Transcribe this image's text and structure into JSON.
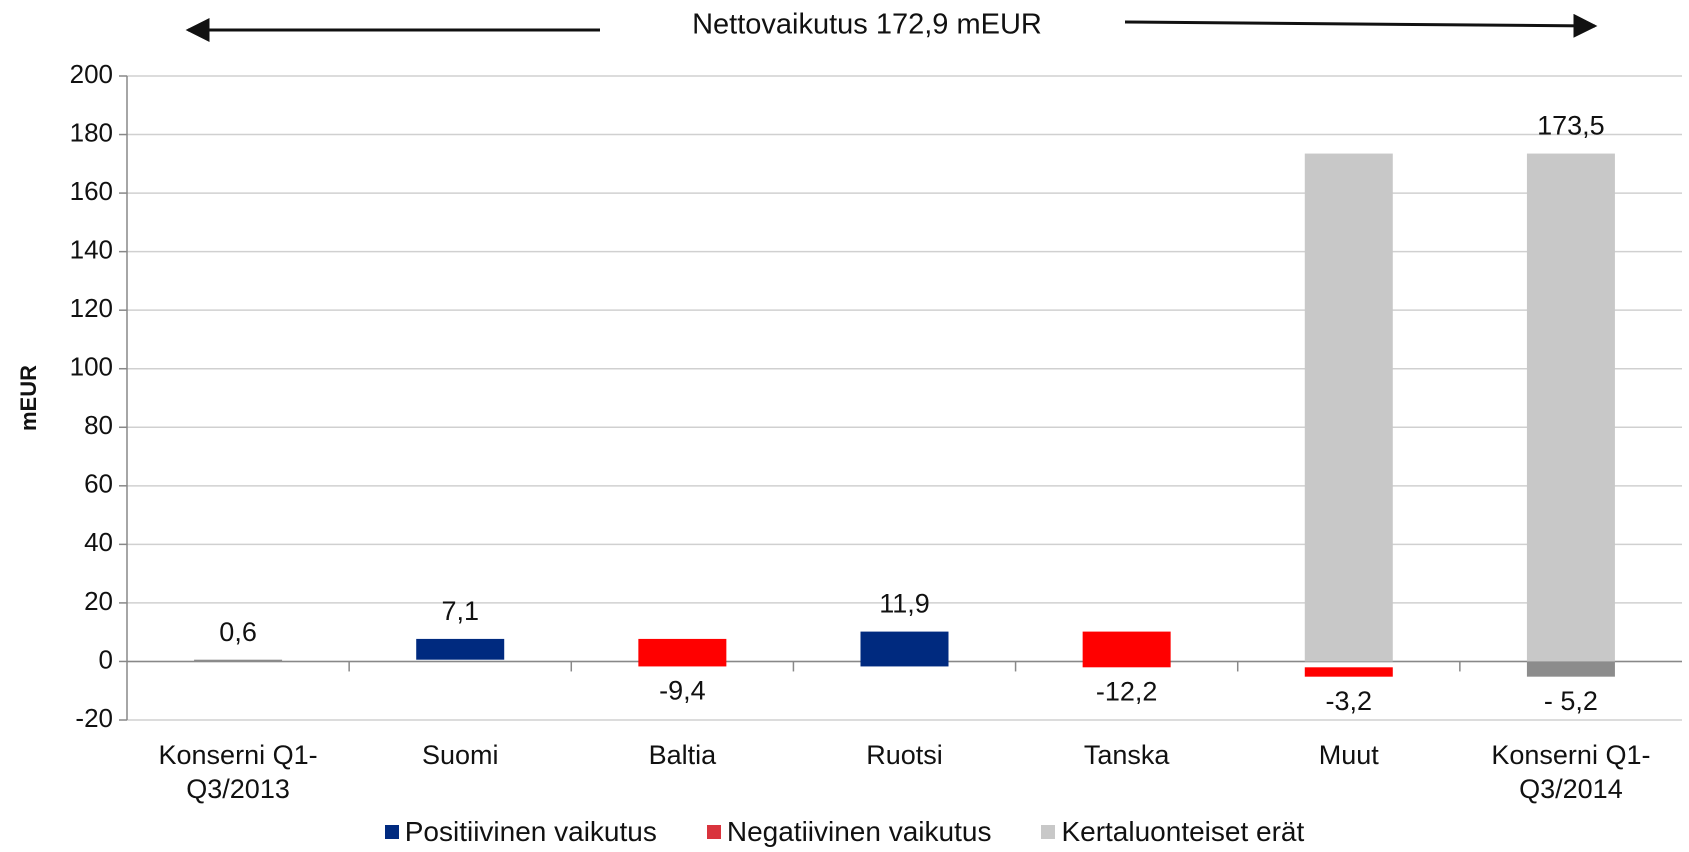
{
  "chart_data": {
    "type": "waterfall",
    "title": "Nettovaikutus 172,9 mEUR",
    "y_label": "mEUR",
    "categories": [
      "Konserni Q1-Q3/2013",
      "Suomi",
      "Baltia",
      "Ruotsi",
      "Tanska",
      "Muut",
      "Konserni Q1-Q3/2014"
    ],
    "totals": {
      "color": "#8c8c8c",
      "values": [
        0.6,
        null,
        null,
        null,
        null,
        null,
        -5.2
      ],
      "value_labels": [
        "0,6",
        null,
        null,
        null,
        null,
        null,
        "- 5,2"
      ]
    },
    "series": [
      {
        "name": "Positiivinen vaikutus",
        "color": "#002a7f",
        "values": [
          null,
          7.1,
          null,
          11.9,
          null,
          null,
          null
        ],
        "value_labels": [
          null,
          "7,1",
          null,
          "11,9",
          null,
          null,
          null
        ]
      },
      {
        "name": "Negatiivinen vaikutus",
        "color": "#ff0000",
        "legend_color": "#d9343d",
        "values": [
          null,
          null,
          -9.4,
          null,
          -12.2,
          -3.2,
          null
        ],
        "value_labels": [
          null,
          null,
          "-9,4",
          null,
          "-12,2",
          "-3,2",
          null
        ]
      },
      {
        "name": "Kertaluonteiset erät",
        "color": "#c8c8c8",
        "values": [
          null,
          null,
          null,
          null,
          null,
          173.5,
          173.5
        ],
        "value_labels": [
          null,
          null,
          null,
          null,
          null,
          null,
          "173,5"
        ]
      }
    ],
    "ylim": [
      -20,
      200
    ],
    "yticks": [
      -20,
      0,
      20,
      40,
      60,
      80,
      100,
      120,
      140,
      160,
      180,
      200
    ],
    "grid": true
  }
}
